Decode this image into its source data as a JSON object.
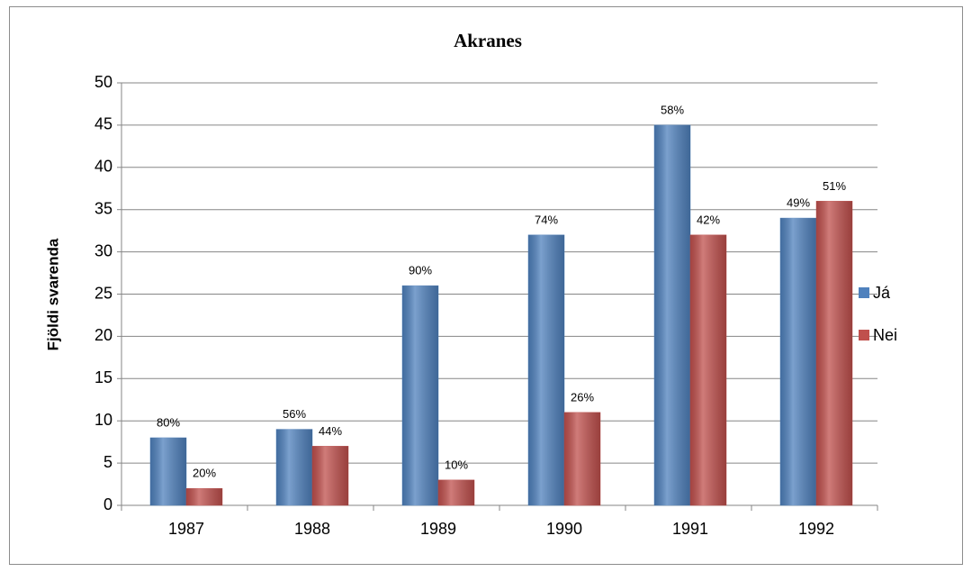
{
  "chart_data": {
    "type": "bar",
    "title": "Akranes",
    "y_label": "Fjöldi svarenda",
    "categories": [
      "1987",
      "1988",
      "1989",
      "1990",
      "1991",
      "1992"
    ],
    "series": [
      {
        "name": "Já",
        "color": "#4f81bd",
        "values": [
          8,
          9,
          26,
          32,
          45,
          34
        ],
        "data_labels": [
          "80%",
          "56%",
          "90%",
          "74%",
          "58%",
          "49%"
        ]
      },
      {
        "name": "Nei",
        "color": "#c0504d",
        "values": [
          2,
          7,
          3,
          11,
          32,
          36
        ],
        "data_labels": [
          "20%",
          "44%",
          "10%",
          "26%",
          "42%",
          "51%"
        ]
      }
    ],
    "ylim": [
      0,
      50
    ],
    "yticks": [
      0,
      5,
      10,
      15,
      20,
      25,
      30,
      35,
      40,
      45,
      50
    ],
    "grid": true,
    "legend": "right"
  }
}
